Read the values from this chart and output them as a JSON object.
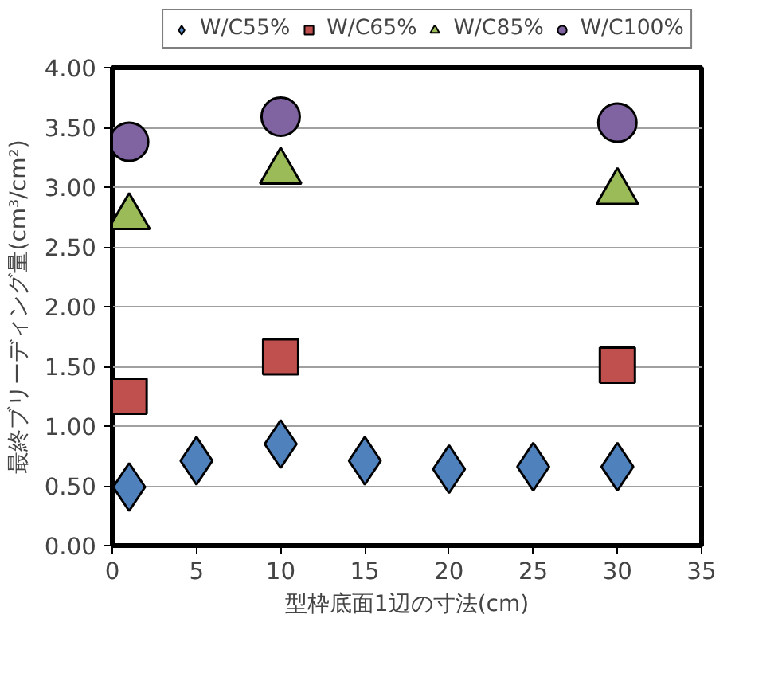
{
  "chart_data": {
    "type": "scatter",
    "xlabel": "型枠底面1辺の寸法(cm)",
    "ylabel": "最終ブリーディング量(cm³/cm²)",
    "xlim": [
      0,
      35
    ],
    "xticks": [
      0,
      5,
      10,
      15,
      20,
      25,
      30,
      35
    ],
    "ylim": [
      0,
      4
    ],
    "yticks": [
      {
        "value": 0,
        "label": "0.00"
      },
      {
        "value": 0.5,
        "label": "0.50"
      },
      {
        "value": 1,
        "label": "1.00"
      },
      {
        "value": 1.5,
        "label": "1.50"
      },
      {
        "value": 2,
        "label": "2.00"
      },
      {
        "value": 2.5,
        "label": "2.50"
      },
      {
        "value": 3,
        "label": "3.00"
      },
      {
        "value": 3.5,
        "label": "3.50"
      },
      {
        "value": 4,
        "label": "4.00"
      }
    ],
    "grid": "y",
    "legend": "top",
    "series": [
      {
        "name": "W/C55%",
        "color": "#4f81bd",
        "marker": "diamond",
        "x": [
          1,
          5,
          10,
          15,
          20,
          25,
          30
        ],
        "values": [
          0.49,
          0.71,
          0.85,
          0.71,
          0.64,
          0.66,
          0.66
        ]
      },
      {
        "name": "W/C65%",
        "color": "#c0504d",
        "marker": "square",
        "x": [
          1,
          10,
          30
        ],
        "values": [
          1.25,
          1.58,
          1.51
        ]
      },
      {
        "name": "W/C85%",
        "color": "#9bbb59",
        "marker": "triangle",
        "x": [
          1,
          10,
          30
        ],
        "values": [
          2.75,
          3.13,
          2.96
        ]
      },
      {
        "name": "W/C100%",
        "color": "#8064a2",
        "marker": "circle",
        "x": [
          1,
          10,
          30
        ],
        "values": [
          3.38,
          3.59,
          3.54
        ]
      }
    ]
  }
}
